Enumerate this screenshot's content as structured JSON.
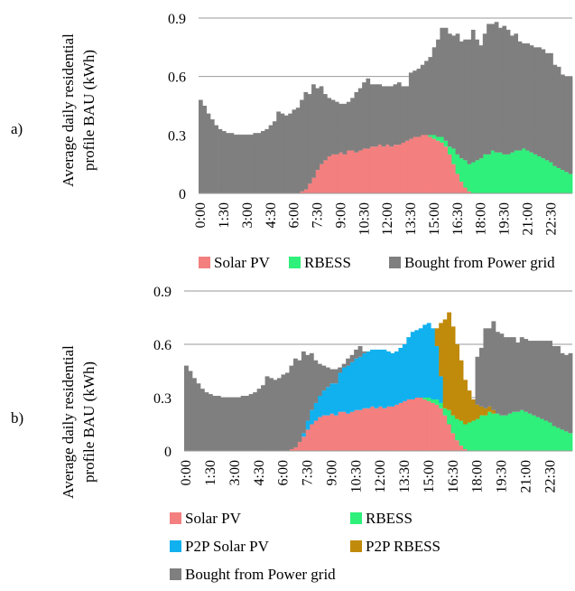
{
  "chart_data": [
    {
      "type": "area",
      "panel_label": "a)",
      "ylabel_line1": "Average daily residential",
      "ylabel_line2": "profile BAU (kWh)",
      "yticks": [
        "0",
        "0.3",
        "0.6",
        "0.9"
      ],
      "ylim": [
        0,
        0.9
      ],
      "xlabels": [
        "0:00",
        "1:30",
        "3:00",
        "4:30",
        "6:00",
        "7:30",
        "9:00",
        "10:30",
        "12:00",
        "13:30",
        "15:00",
        "16:30",
        "18:00",
        "19:30",
        "21:00",
        "22:30"
      ],
      "grid": true,
      "legend_position": "bottom",
      "series": [
        {
          "name": "Solar PV",
          "values": [
            0,
            0,
            0,
            0,
            0,
            0,
            0,
            0,
            0,
            0,
            0,
            0,
            0,
            0,
            0,
            0,
            0,
            0,
            0,
            0,
            0,
            0,
            0,
            0,
            0,
            0,
            0.01,
            0.02,
            0.05,
            0.08,
            0.12,
            0.15,
            0.17,
            0.19,
            0.2,
            0.2,
            0.21,
            0.2,
            0.22,
            0.22,
            0.21,
            0.22,
            0.23,
            0.23,
            0.24,
            0.24,
            0.25,
            0.24,
            0.25,
            0.24,
            0.25,
            0.25,
            0.26,
            0.27,
            0.28,
            0.29,
            0.29,
            0.3,
            0.3,
            0.29,
            0.28,
            0.27,
            0.26,
            0.24,
            0.2,
            0.15,
            0.1,
            0.06,
            0.03,
            0.01,
            0,
            0,
            0,
            0,
            0,
            0,
            0,
            0,
            0,
            0,
            0,
            0,
            0,
            0,
            0,
            0,
            0,
            0,
            0,
            0,
            0,
            0,
            0,
            0,
            0,
            0
          ]
        },
        {
          "name": "RBESS",
          "values": [
            0,
            0,
            0,
            0,
            0,
            0,
            0,
            0,
            0,
            0,
            0,
            0,
            0,
            0,
            0,
            0,
            0,
            0,
            0,
            0,
            0,
            0,
            0,
            0,
            0,
            0,
            0,
            0,
            0,
            0,
            0,
            0,
            0,
            0,
            0,
            0,
            0,
            0,
            0,
            0,
            0,
            0,
            0,
            0,
            0,
            0,
            0,
            0,
            0,
            0,
            0,
            0,
            0,
            0,
            0,
            0,
            0,
            0,
            0,
            0.01,
            0.02,
            0.02,
            0.03,
            0.03,
            0.04,
            0.08,
            0.1,
            0.12,
            0.14,
            0.14,
            0.16,
            0.17,
            0.18,
            0.2,
            0.2,
            0.22,
            0.21,
            0.21,
            0.2,
            0.2,
            0.21,
            0.22,
            0.22,
            0.23,
            0.22,
            0.21,
            0.2,
            0.19,
            0.18,
            0.17,
            0.16,
            0.14,
            0.13,
            0.12,
            0.11,
            0.1
          ]
        },
        {
          "name": "Bought from Power grid",
          "values": [
            0.48,
            0.45,
            0.41,
            0.38,
            0.35,
            0.33,
            0.32,
            0.31,
            0.31,
            0.3,
            0.3,
            0.3,
            0.3,
            0.3,
            0.31,
            0.31,
            0.32,
            0.33,
            0.35,
            0.37,
            0.42,
            0.41,
            0.4,
            0.41,
            0.43,
            0.44,
            0.47,
            0.5,
            0.46,
            0.48,
            0.42,
            0.4,
            0.34,
            0.3,
            0.28,
            0.27,
            0.25,
            0.26,
            0.25,
            0.27,
            0.31,
            0.32,
            0.34,
            0.36,
            0.32,
            0.32,
            0.31,
            0.31,
            0.3,
            0.31,
            0.31,
            0.32,
            0.29,
            0.28,
            0.34,
            0.34,
            0.35,
            0.36,
            0.38,
            0.4,
            0.45,
            0.5,
            0.56,
            0.58,
            0.58,
            0.58,
            0.62,
            0.6,
            0.62,
            0.64,
            0.68,
            0.62,
            0.58,
            0.62,
            0.67,
            0.65,
            0.67,
            0.64,
            0.66,
            0.64,
            0.6,
            0.6,
            0.56,
            0.54,
            0.55,
            0.55,
            0.55,
            0.56,
            0.56,
            0.55,
            0.56,
            0.52,
            0.52,
            0.49,
            0.49,
            0.5
          ]
        }
      ],
      "legend": [
        "Solar PV",
        "RBESS",
        "Bought from Power grid"
      ],
      "colors": {
        "Solar PV": "#f47f7f",
        "RBESS": "#2ef07a",
        "Bought from Power grid": "#7f7f7f"
      }
    },
    {
      "type": "area",
      "panel_label": "b)",
      "ylabel_line1": "Average daily residential",
      "ylabel_line2": "profile BAU (kWh)",
      "yticks": [
        "0",
        "0.3",
        "0.6",
        "0.9"
      ],
      "ylim": [
        0,
        0.9
      ],
      "xlabels": [
        "0:00",
        "1:30",
        "3:00",
        "4:30",
        "6:00",
        "7:30",
        "9:00",
        "10:30",
        "12:00",
        "13:30",
        "15:00",
        "16:30",
        "18:00",
        "19:30",
        "21:00",
        "22:30"
      ],
      "grid": true,
      "legend_position": "bottom",
      "series": [
        {
          "name": "Solar PV",
          "values": [
            0,
            0,
            0,
            0,
            0,
            0,
            0,
            0,
            0,
            0,
            0,
            0,
            0,
            0,
            0,
            0,
            0,
            0,
            0,
            0,
            0,
            0,
            0,
            0,
            0,
            0,
            0.01,
            0.02,
            0.05,
            0.08,
            0.12,
            0.15,
            0.17,
            0.19,
            0.2,
            0.2,
            0.21,
            0.2,
            0.22,
            0.22,
            0.21,
            0.22,
            0.23,
            0.23,
            0.24,
            0.24,
            0.25,
            0.24,
            0.25,
            0.24,
            0.25,
            0.25,
            0.26,
            0.27,
            0.28,
            0.29,
            0.29,
            0.3,
            0.3,
            0.29,
            0.28,
            0.27,
            0.26,
            0.24,
            0.2,
            0.15,
            0.1,
            0.06,
            0.03,
            0.01,
            0,
            0,
            0,
            0,
            0,
            0,
            0,
            0,
            0,
            0,
            0,
            0,
            0,
            0,
            0,
            0,
            0,
            0,
            0,
            0,
            0,
            0,
            0,
            0,
            0,
            0
          ]
        },
        {
          "name": "RBESS",
          "values": [
            0,
            0,
            0,
            0,
            0,
            0,
            0,
            0,
            0,
            0,
            0,
            0,
            0,
            0,
            0,
            0,
            0,
            0,
            0,
            0,
            0,
            0,
            0,
            0,
            0,
            0,
            0,
            0,
            0,
            0,
            0,
            0,
            0,
            0,
            0,
            0,
            0,
            0,
            0,
            0,
            0,
            0,
            0,
            0,
            0,
            0,
            0,
            0,
            0,
            0,
            0,
            0,
            0,
            0,
            0,
            0,
            0,
            0,
            0,
            0.01,
            0.02,
            0.02,
            0.03,
            0.03,
            0.04,
            0.08,
            0.1,
            0.12,
            0.14,
            0.14,
            0.16,
            0.17,
            0.18,
            0.2,
            0.2,
            0.22,
            0.21,
            0.21,
            0.2,
            0.2,
            0.21,
            0.22,
            0.22,
            0.23,
            0.22,
            0.21,
            0.2,
            0.19,
            0.18,
            0.17,
            0.16,
            0.14,
            0.13,
            0.12,
            0.11,
            0.1
          ]
        },
        {
          "name": "P2P Solar PV",
          "values": [
            0,
            0,
            0,
            0,
            0,
            0,
            0,
            0,
            0,
            0,
            0,
            0,
            0,
            0,
            0,
            0,
            0,
            0,
            0,
            0,
            0,
            0,
            0,
            0,
            0,
            0,
            0,
            0,
            0,
            0.02,
            0.05,
            0.08,
            0.1,
            0.12,
            0.14,
            0.16,
            0.17,
            0.18,
            0.22,
            0.25,
            0.27,
            0.28,
            0.29,
            0.3,
            0.31,
            0.32,
            0.32,
            0.33,
            0.32,
            0.33,
            0.31,
            0.3,
            0.3,
            0.31,
            0.32,
            0.35,
            0.38,
            0.38,
            0.39,
            0.41,
            0.42,
            0.4,
            0.3,
            0.15,
            0,
            0,
            0,
            0,
            0,
            0,
            0,
            0,
            0,
            0,
            0,
            0,
            0,
            0,
            0,
            0,
            0,
            0,
            0,
            0,
            0,
            0,
            0,
            0,
            0,
            0,
            0,
            0,
            0,
            0,
            0,
            0
          ]
        },
        {
          "name": "P2P RBESS",
          "values": [
            0,
            0,
            0,
            0,
            0,
            0,
            0,
            0,
            0,
            0,
            0,
            0,
            0,
            0,
            0,
            0,
            0,
            0,
            0,
            0,
            0,
            0,
            0,
            0,
            0,
            0,
            0,
            0,
            0,
            0,
            0,
            0,
            0,
            0,
            0,
            0,
            0,
            0,
            0,
            0,
            0,
            0,
            0,
            0,
            0,
            0,
            0,
            0,
            0,
            0,
            0,
            0,
            0,
            0,
            0,
            0,
            0,
            0,
            0,
            0,
            0,
            0,
            0.1,
            0.3,
            0.5,
            0.55,
            0.5,
            0.42,
            0.34,
            0.25,
            0.18,
            0.12,
            0.08,
            0.05,
            0.04,
            0.03,
            0.02,
            0,
            0,
            0,
            0,
            0,
            0,
            0,
            0,
            0,
            0,
            0,
            0,
            0,
            0,
            0,
            0,
            0,
            0,
            0
          ]
        },
        {
          "name": "Bought from Power grid",
          "values": [
            0.48,
            0.45,
            0.41,
            0.38,
            0.35,
            0.33,
            0.32,
            0.31,
            0.31,
            0.3,
            0.3,
            0.3,
            0.3,
            0.3,
            0.31,
            0.31,
            0.32,
            0.33,
            0.35,
            0.37,
            0.42,
            0.41,
            0.4,
            0.41,
            0.43,
            0.44,
            0.47,
            0.5,
            0.46,
            0.46,
            0.37,
            0.32,
            0.24,
            0.18,
            0.14,
            0.11,
            0.08,
            0.08,
            0.03,
            0.02,
            0.04,
            0.04,
            0.05,
            0.06,
            0.01,
            0,
            0,
            0,
            0,
            0,
            0,
            0,
            0,
            0,
            0,
            0,
            0,
            0,
            0,
            0,
            0,
            0,
            0,
            0,
            0,
            0,
            0,
            0,
            0,
            0,
            0,
            0,
            0.27,
            0.33,
            0.45,
            0.44,
            0.5,
            0.46,
            0.46,
            0.44,
            0.43,
            0.42,
            0.39,
            0.41,
            0.41,
            0.41,
            0.42,
            0.43,
            0.44,
            0.45,
            0.46,
            0.45,
            0.46,
            0.43,
            0.43,
            0.45
          ]
        }
      ],
      "legend": [
        "Solar PV",
        "RBESS",
        "P2P Solar PV",
        "P2P RBESS",
        "Bought from Power grid"
      ],
      "colors": {
        "Solar PV": "#f47f7f",
        "RBESS": "#2ef07a",
        "P2P Solar PV": "#11b1ef",
        "P2P RBESS": "#c08a0a",
        "Bought from Power grid": "#7f7f7f"
      }
    }
  ]
}
